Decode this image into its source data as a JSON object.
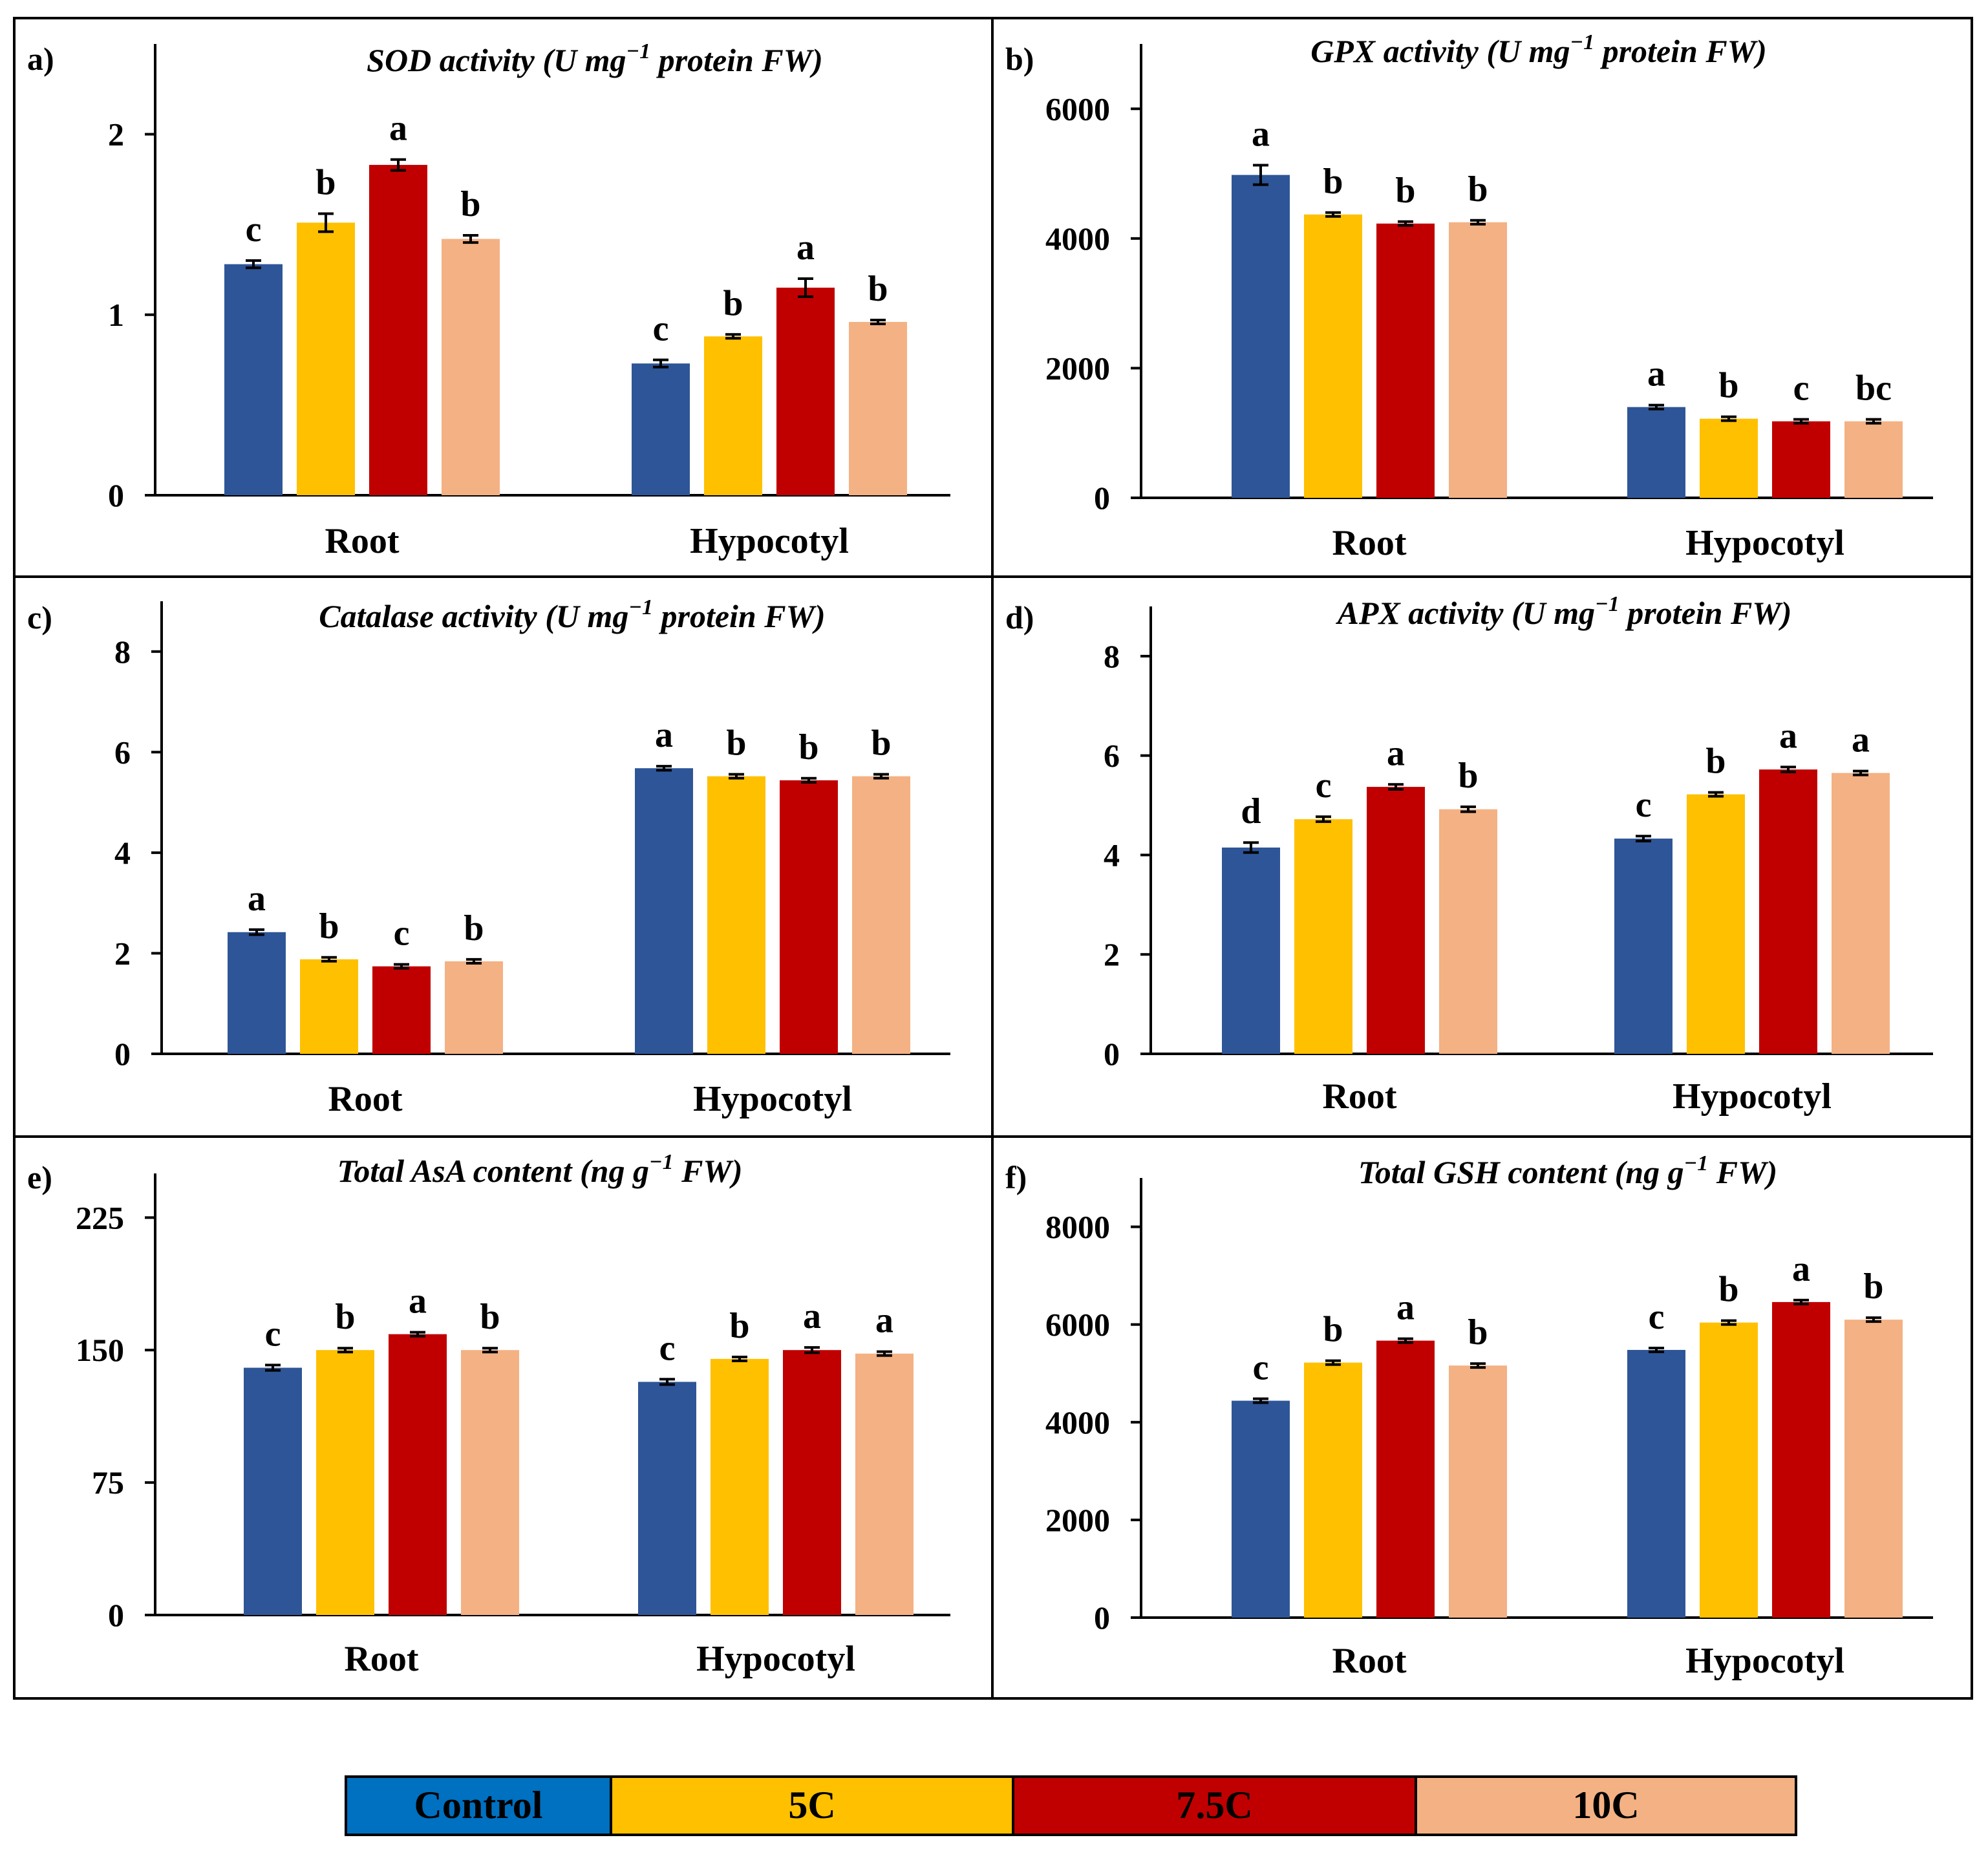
{
  "figure": {
    "legend": [
      {
        "label": "Control",
        "color": "#2E5597"
      },
      {
        "label": "5C",
        "color": "#FFC000"
      },
      {
        "label": "7.5C",
        "color": "#C00000"
      },
      {
        "label": "10C",
        "color": "#F4B183"
      }
    ],
    "colors": {
      "accent_legend_control": "#0070C0"
    }
  },
  "chart_data": [
    {
      "type": "bar",
      "panel_label": "a)",
      "title_main": "SOD activity (U mg",
      "title_sup": "−1",
      "title_tail": " protein FW)",
      "categories": [
        "Root",
        "Hypocotyl"
      ],
      "series": [
        {
          "name": "Control",
          "values": [
            1.28,
            0.73
          ],
          "errors": [
            0.02,
            0.02
          ],
          "letters": [
            "c",
            "c"
          ]
        },
        {
          "name": "5C",
          "values": [
            1.51,
            0.88
          ],
          "errors": [
            0.05,
            0.01
          ],
          "letters": [
            "b",
            "b"
          ]
        },
        {
          "name": "7.5C",
          "values": [
            1.83,
            1.15
          ],
          "errors": [
            0.03,
            0.05
          ],
          "letters": [
            "a",
            "a"
          ]
        },
        {
          "name": "10C",
          "values": [
            1.42,
            0.96
          ],
          "errors": [
            0.02,
            0.01
          ],
          "letters": [
            "b",
            "b"
          ]
        }
      ],
      "yticks": [
        0,
        1,
        2
      ],
      "ytick_labels": [
        "0",
        "1",
        "2"
      ],
      "ylim": [
        0,
        2.5
      ]
    },
    {
      "type": "bar",
      "panel_label": "b)",
      "title_main": "GPX activity (U mg",
      "title_sup": "−1",
      "title_tail": " protein FW)",
      "categories": [
        "Root",
        "Hypocotyl"
      ],
      "series": [
        {
          "name": "Control",
          "values": [
            4980,
            1400
          ],
          "errors": [
            150,
            25
          ],
          "letters": [
            "a",
            "a"
          ]
        },
        {
          "name": "5C",
          "values": [
            4370,
            1220
          ],
          "errors": [
            20,
            15
          ],
          "letters": [
            "b",
            "b"
          ]
        },
        {
          "name": "7.5C",
          "values": [
            4230,
            1180
          ],
          "errors": [
            20,
            15
          ],
          "letters": [
            "b",
            "c"
          ]
        },
        {
          "name": "10C",
          "values": [
            4250,
            1180
          ],
          "errors": [
            25,
            15
          ],
          "letters": [
            "b",
            "bc"
          ]
        }
      ],
      "yticks": [
        0,
        2000,
        4000,
        6000
      ],
      "ytick_labels": [
        "0",
        "2000",
        "4000",
        "6000"
      ],
      "ylim": [
        0,
        7000
      ]
    },
    {
      "type": "bar",
      "panel_label": "c)",
      "title_main": "Catalase activity (U mg",
      "title_sup": "−1",
      "title_tail": " protein FW)",
      "categories": [
        "Root",
        "Hypocotyl"
      ],
      "series": [
        {
          "name": "Control",
          "values": [
            2.42,
            5.68
          ],
          "errors": [
            0.05,
            0.04
          ],
          "letters": [
            "a",
            "a"
          ]
        },
        {
          "name": "5C",
          "values": [
            1.88,
            5.52
          ],
          "errors": [
            0.03,
            0.03
          ],
          "letters": [
            "b",
            "b"
          ]
        },
        {
          "name": "7.5C",
          "values": [
            1.74,
            5.44
          ],
          "errors": [
            0.03,
            0.04
          ],
          "letters": [
            "c",
            "b"
          ]
        },
        {
          "name": "10C",
          "values": [
            1.84,
            5.52
          ],
          "errors": [
            0.03,
            0.03
          ],
          "letters": [
            "b",
            "b"
          ]
        }
      ],
      "yticks": [
        0,
        2,
        4,
        6,
        8
      ],
      "ytick_labels": [
        "0",
        "2",
        "4",
        "6",
        "8"
      ],
      "ylim": [
        0,
        9
      ]
    },
    {
      "type": "bar",
      "panel_label": "d)",
      "title_main": "APX activity (U mg",
      "title_sup": "−1",
      "title_tail": " protein FW)",
      "categories": [
        "Root",
        "Hypocotyl"
      ],
      "series": [
        {
          "name": "Control",
          "values": [
            4.15,
            4.33
          ],
          "errors": [
            0.1,
            0.05
          ],
          "letters": [
            "d",
            "c"
          ]
        },
        {
          "name": "5C",
          "values": [
            4.72,
            5.22
          ],
          "errors": [
            0.05,
            0.03
          ],
          "letters": [
            "c",
            "b"
          ]
        },
        {
          "name": "7.5C",
          "values": [
            5.37,
            5.72
          ],
          "errors": [
            0.05,
            0.05
          ],
          "letters": [
            "a",
            "a"
          ]
        },
        {
          "name": "10C",
          "values": [
            4.92,
            5.65
          ],
          "errors": [
            0.05,
            0.03
          ],
          "letters": [
            "b",
            "a"
          ]
        }
      ],
      "yticks": [
        0,
        2,
        4,
        6,
        8
      ],
      "ytick_labels": [
        "0",
        "2",
        "4",
        "6",
        "8"
      ],
      "ylim": [
        0,
        9
      ]
    },
    {
      "type": "bar",
      "panel_label": "e)",
      "title_main": "Total AsA content (ng g",
      "title_sup": "−1",
      "title_tail": " FW)",
      "categories": [
        "Root",
        "Hypocotyl"
      ],
      "series": [
        {
          "name": "Control",
          "values": [
            140,
            132
          ],
          "errors": [
            1.5,
            1.5
          ],
          "letters": [
            "c",
            "c"
          ]
        },
        {
          "name": "5C",
          "values": [
            150,
            145
          ],
          "errors": [
            1.0,
            1.0
          ],
          "letters": [
            "b",
            "b"
          ]
        },
        {
          "name": "7.5C",
          "values": [
            159,
            150
          ],
          "errors": [
            1.0,
            1.5
          ],
          "letters": [
            "a",
            "a"
          ]
        },
        {
          "name": "10C",
          "values": [
            150,
            148
          ],
          "errors": [
            1.0,
            1.0
          ],
          "letters": [
            "b",
            "a"
          ]
        }
      ],
      "yticks": [
        0,
        75,
        150,
        225
      ],
      "ytick_labels": [
        "0",
        "75",
        "150",
        "225"
      ],
      "ylim": [
        0,
        250
      ]
    },
    {
      "type": "bar",
      "panel_label": "f)",
      "title_main": "Total GSH content (ng g",
      "title_sup": "−1",
      "title_tail": " FW)",
      "categories": [
        "Root",
        "Hypocotyl"
      ],
      "series": [
        {
          "name": "Control",
          "values": [
            4440,
            5480
          ],
          "errors": [
            30,
            30
          ],
          "letters": [
            "c",
            "c"
          ]
        },
        {
          "name": "5C",
          "values": [
            5220,
            6040
          ],
          "errors": [
            30,
            30
          ],
          "letters": [
            "b",
            "b"
          ]
        },
        {
          "name": "7.5C",
          "values": [
            5670,
            6460
          ],
          "errors": [
            40,
            40
          ],
          "letters": [
            "a",
            "a"
          ]
        },
        {
          "name": "10C",
          "values": [
            5160,
            6100
          ],
          "errors": [
            40,
            30
          ],
          "letters": [
            "b",
            "b"
          ]
        }
      ],
      "yticks": [
        0,
        2000,
        4000,
        6000,
        8000
      ],
      "ytick_labels": [
        "0",
        "2000",
        "4000",
        "6000",
        "8000"
      ],
      "ylim": [
        0,
        9000
      ]
    }
  ]
}
